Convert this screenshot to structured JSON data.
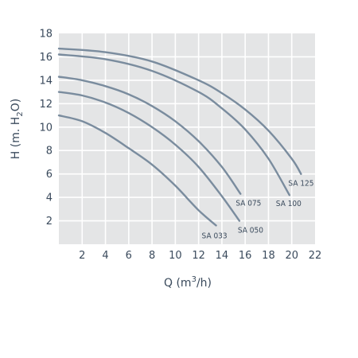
{
  "chart_data": {
    "type": "line",
    "xlabel": "Q (m3/h)",
    "ylabel": "H (m. H2O)",
    "xlim": [
      0,
      22
    ],
    "ylim": [
      0,
      18
    ],
    "x_ticks": [
      2,
      4,
      6,
      8,
      10,
      12,
      14,
      16,
      18,
      20,
      22
    ],
    "y_ticks": [
      2,
      4,
      6,
      8,
      10,
      12,
      14,
      16,
      18
    ],
    "grid": true,
    "colors": {
      "background": "#e4e5e6",
      "grid": "#ffffff",
      "line": "#7a8c9e",
      "text": "#3a4a5c"
    },
    "series": [
      {
        "name": "SA 033",
        "x": [
          0,
          2,
          4,
          6,
          8,
          10,
          12,
          13.5
        ],
        "y": [
          11,
          10.5,
          9.5,
          8.2,
          6.8,
          5.0,
          2.9,
          1.6
        ]
      },
      {
        "name": "SA 050",
        "x": [
          0,
          2,
          4,
          6,
          8,
          10,
          12,
          14,
          15.5
        ],
        "y": [
          13,
          12.7,
          12.1,
          11.2,
          10.0,
          8.5,
          6.6,
          4.1,
          2.0
        ]
      },
      {
        "name": "SA 075",
        "x": [
          0,
          2,
          4,
          6,
          8,
          10,
          12,
          14,
          15.6
        ],
        "y": [
          14.3,
          14.0,
          13.5,
          12.8,
          11.8,
          10.5,
          8.8,
          6.6,
          4.3
        ]
      },
      {
        "name": "SA 100",
        "x": [
          0,
          4,
          8,
          12,
          14,
          16,
          18,
          19.8
        ],
        "y": [
          16.2,
          15.8,
          14.8,
          13.0,
          11.6,
          9.8,
          7.3,
          4.2
        ]
      },
      {
        "name": "SA 125",
        "x": [
          0,
          4,
          8,
          12,
          14,
          16,
          18,
          20,
          20.8
        ],
        "y": [
          16.7,
          16.4,
          15.6,
          14.0,
          12.9,
          11.5,
          9.7,
          7.3,
          6.0
        ]
      }
    ]
  },
  "labels": {
    "ylabel_main": "H (m. H",
    "ylabel_sub": "2",
    "ylabel_tail": "O)",
    "xlabel_main": "Q (m",
    "xlabel_sup": "3",
    "xlabel_tail": "/h)"
  }
}
